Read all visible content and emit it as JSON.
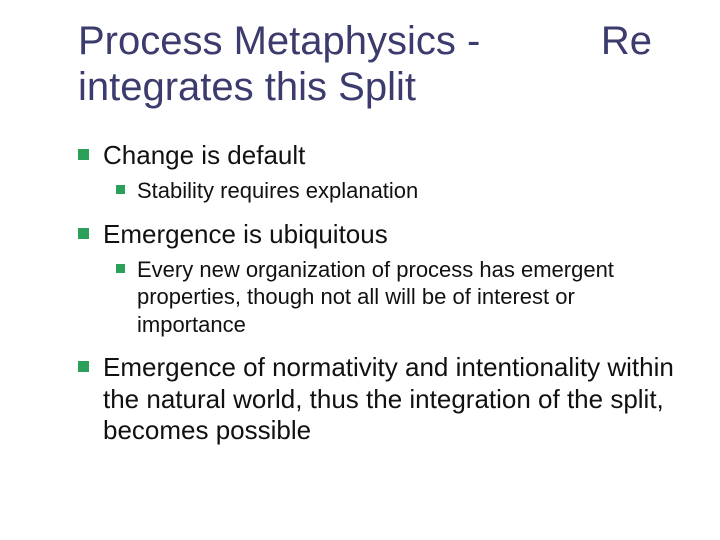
{
  "colors": {
    "bullet": "#2aa05a",
    "title": "#3b3b6d",
    "body_text": "#111111",
    "background": "#ffffff"
  },
  "fontsize": {
    "title": 40,
    "level1": 26,
    "level2": 22
  },
  "title_left": "Process Metaphysics -integrates this Split",
  "title_right": "Re",
  "items": [
    {
      "text": "Change is default",
      "children": [
        {
          "text": "Stability requires explanation"
        }
      ]
    },
    {
      "text": "Emergence is ubiquitous",
      "children": [
        {
          "text": "Every new organization of process has emergent properties, though not all will be of interest or importance"
        }
      ]
    },
    {
      "text": "Emergence of normativity and intentionality within the natural world, thus the integration of the split, becomes possible",
      "children": []
    }
  ]
}
